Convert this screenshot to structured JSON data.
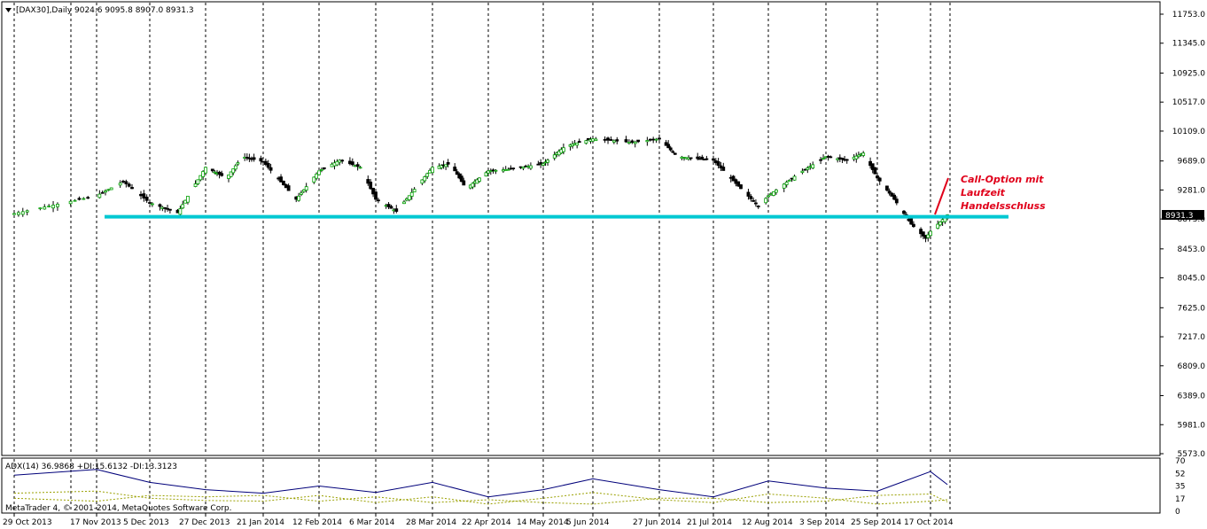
{
  "window": {
    "symbol_header": "[DAX30],Daily",
    "ohlc_header": "9024.6 9095.8 8907.0 8931.3",
    "current_price_tag": "8931.3",
    "copyright": "MetaTrader 4, © 2001-2014, MetaQuotes Software Corp."
  },
  "indicator": {
    "header": "ADX(14) 36.9868 +DI:15.6132 -DI:13.3123",
    "levels": [
      "70",
      "52",
      "35",
      "17",
      "0"
    ]
  },
  "annotation": {
    "lines": [
      "Call-Option mit",
      "Laufzeit",
      "Handelsschluss"
    ]
  },
  "colors": {
    "background": "#ffffff",
    "grid": "#000000",
    "bull_candle": "#00a000",
    "bear_candle": "#000000",
    "support_line": "#00c8d2",
    "annotation": "#e0001a",
    "adx_line": "#00007a",
    "di_lines": "#9aa000"
  },
  "chart_data": [
    {
      "type": "candlestick",
      "title": "[DAX30],Daily",
      "x_tick_labels": [
        "29 Oct 2013",
        "17 Nov 2013",
        "5 Dec 2013",
        "27 Dec 2013",
        "21 Jan 2014",
        "12 Feb 2014",
        "6 Mar 2014",
        "28 Mar 2014",
        "22 Apr 2014",
        "14 May 2014",
        "5 Jun 2014",
        "27 Jun 2014",
        "21 Jul 2014",
        "12 Aug 2014",
        "3 Sep 2014",
        "25 Sep 2014",
        "17 Oct 2014"
      ],
      "y_tick_labels": [
        "11753.0",
        "11345.0",
        "10925.0",
        "10517.0",
        "10109.0",
        "9689.0",
        "9281.0",
        "8873.0",
        "8453.0",
        "8045.0",
        "7625.0",
        "7217.0",
        "6809.0",
        "6389.0",
        "5981.0",
        "5573.0"
      ],
      "ylim": [
        5573,
        11753
      ],
      "last_close": 8931.3,
      "support_level": 8905,
      "close_series": [
        {
          "date": "29 Oct 2013",
          "close": 8950
        },
        {
          "date": "17 Nov 2013",
          "close": 9200
        },
        {
          "date": "26 Nov 2013",
          "close": 9400
        },
        {
          "date": "5 Dec 2013",
          "close": 9100
        },
        {
          "date": "16 Dec 2013",
          "close": 8960
        },
        {
          "date": "27 Dec 2013",
          "close": 9600
        },
        {
          "date": "5 Jan 2014",
          "close": 9450
        },
        {
          "date": "12 Jan 2014",
          "close": 9750
        },
        {
          "date": "21 Jan 2014",
          "close": 9680
        },
        {
          "date": "3 Feb 2014",
          "close": 9150
        },
        {
          "date": "12 Feb 2014",
          "close": 9550
        },
        {
          "date": "20 Feb 2014",
          "close": 9700
        },
        {
          "date": "28 Feb 2014",
          "close": 9600
        },
        {
          "date": "6 Mar 2014",
          "close": 9150
        },
        {
          "date": "14 Mar 2014",
          "close": 8980
        },
        {
          "date": "28 Mar 2014",
          "close": 9600
        },
        {
          "date": "5 Apr 2014",
          "close": 9650
        },
        {
          "date": "12 Apr 2014",
          "close": 9300
        },
        {
          "date": "22 Apr 2014",
          "close": 9550
        },
        {
          "date": "30 Apr 2014",
          "close": 9570
        },
        {
          "date": "14 May 2014",
          "close": 9650
        },
        {
          "date": "24 May 2014",
          "close": 9900
        },
        {
          "date": "5 Jun 2014",
          "close": 10000
        },
        {
          "date": "18 Jun 2014",
          "close": 9950
        },
        {
          "date": "27 Jun 2014",
          "close": 10000
        },
        {
          "date": "5 Jul 2014",
          "close": 9750
        },
        {
          "date": "21 Jul 2014",
          "close": 9700
        },
        {
          "date": "1 Aug 2014",
          "close": 9300
        },
        {
          "date": "8 Aug 2014",
          "close": 9050
        },
        {
          "date": "12 Aug 2014",
          "close": 9200
        },
        {
          "date": "23 Aug 2014",
          "close": 9500
        },
        {
          "date": "3 Sep 2014",
          "close": 9750
        },
        {
          "date": "12 Sep 2014",
          "close": 9700
        },
        {
          "date": "19 Sep 2014",
          "close": 9800
        },
        {
          "date": "25 Sep 2014",
          "close": 9450
        },
        {
          "date": "2 Oct 2014",
          "close": 9150
        },
        {
          "date": "9 Oct 2014",
          "close": 8800
        },
        {
          "date": "15 Oct 2014",
          "close": 8600
        },
        {
          "date": "17 Oct 2014",
          "close": 8700
        },
        {
          "date": "24 Oct 2014",
          "close": 8931.3
        }
      ]
    },
    {
      "type": "line",
      "title": "ADX(14) 36.9868 +DI:15.6132 -DI:13.3123",
      "y_tick_labels": [
        "70",
        "52",
        "35",
        "17",
        "0"
      ],
      "ylim": [
        0,
        70
      ],
      "x": [
        "29 Oct 2013",
        "17 Nov 2013",
        "5 Dec 2013",
        "27 Dec 2013",
        "21 Jan 2014",
        "12 Feb 2014",
        "6 Mar 2014",
        "28 Mar 2014",
        "22 Apr 2014",
        "14 May 2014",
        "5 Jun 2014",
        "27 Jun 2014",
        "21 Jul 2014",
        "12 Aug 2014",
        "3 Sep 2014",
        "25 Sep 2014",
        "17 Oct 2014",
        "24 Oct 2014"
      ],
      "series": [
        {
          "name": "ADX(14)",
          "values": [
            50,
            58,
            40,
            30,
            25,
            35,
            26,
            40,
            20,
            30,
            45,
            30,
            20,
            42,
            32,
            28,
            55,
            37
          ]
        },
        {
          "name": "+DI",
          "values": [
            25,
            28,
            18,
            15,
            14,
            22,
            12,
            20,
            10,
            18,
            26,
            16,
            12,
            24,
            18,
            10,
            14,
            16
          ]
        },
        {
          "name": "-DI",
          "values": [
            18,
            14,
            22,
            20,
            22,
            14,
            20,
            12,
            16,
            12,
            10,
            18,
            18,
            12,
            14,
            22,
            24,
            13
          ]
        }
      ]
    }
  ]
}
